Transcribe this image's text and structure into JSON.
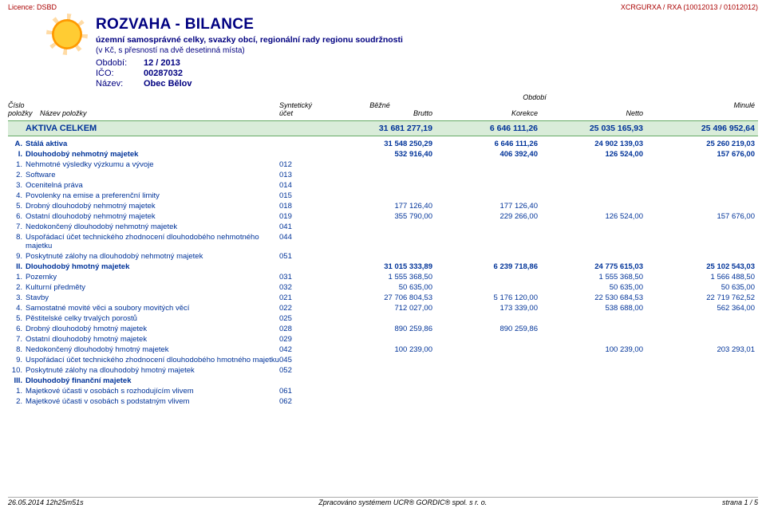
{
  "top": {
    "licence_label": "Licence:",
    "licence_value": "DSBD",
    "right": "XCRGURXA / RXA (10012013 / 01012012)"
  },
  "header": {
    "title": "ROZVAHA - BILANCE",
    "sub1": "územní samosprávné celky, svazky obcí, regionální rady regionu soudržnosti",
    "sub2": "(v Kč, s přesností na dvě desetinná místa)",
    "rows": [
      {
        "label": "Období:",
        "value": "12 / 2013"
      },
      {
        "label": "IČO:",
        "value": "00287032"
      },
      {
        "label": "Název:",
        "value": "Obec Bělov"
      }
    ]
  },
  "colhead": {
    "obdobi": "Období",
    "left1": "Číslo",
    "left2_a": "",
    "left2_b": "Název položky",
    "synth": "Syntetický",
    "ucet": "účet",
    "bezne": "Běžné",
    "brutto": "Brutto",
    "korekce": "Korekce",
    "netto": "Netto",
    "minule": "Minulé",
    "polozky": "položky"
  },
  "total": {
    "label": "AKTIVA CELKEM",
    "brutto": "31 681 277,19",
    "korekce": "6 646 111,26",
    "netto": "25 035 165,93",
    "minule": "25 496 952,64"
  },
  "sections": [
    {
      "idx": "A.",
      "name": "Stálá aktiva",
      "brutto": "31 548 250,29",
      "korekce": "6 646 111,26",
      "netto": "24 902 139,03",
      "minule": "25 260 219,03"
    }
  ],
  "groups": [
    {
      "idx": "I.",
      "name": "Dlouhodobý nehmotný majetek",
      "brutto": "532 916,40",
      "korekce": "406 392,40",
      "netto": "126 524,00",
      "minule": "157 676,00"
    },
    {
      "idx": "II.",
      "name": "Dlouhodobý hmotný majetek",
      "brutto": "31 015 333,89",
      "korekce": "6 239 718,86",
      "netto": "24 775 615,03",
      "minule": "25 102 543,03"
    },
    {
      "idx": "III.",
      "name": "Dlouhodobý finanční majetek",
      "brutto": "",
      "korekce": "",
      "netto": "",
      "minule": ""
    }
  ],
  "items_g1": [
    {
      "n": "1.",
      "name": "Nehmotné výsledky výzkumu a vývoje",
      "acc": "012"
    },
    {
      "n": "2.",
      "name": "Software",
      "acc": "013"
    },
    {
      "n": "3.",
      "name": "Ocenitelná práva",
      "acc": "014"
    },
    {
      "n": "4.",
      "name": "Povolenky na emise a preferenční limity",
      "acc": "015"
    },
    {
      "n": "5.",
      "name": "Drobný dlouhodobý nehmotný majetek",
      "acc": "018",
      "brutto": "177 126,40",
      "korekce": "177 126,40"
    },
    {
      "n": "6.",
      "name": "Ostatní dlouhodobý nehmotný majetek",
      "acc": "019",
      "brutto": "355 790,00",
      "korekce": "229 266,00",
      "netto": "126 524,00",
      "minule": "157 676,00"
    },
    {
      "n": "7.",
      "name": "Nedokončený dlouhodobý nehmotný majetek",
      "acc": "041"
    },
    {
      "n": "8.",
      "name": "Uspořádací účet technického zhodnocení dlouhodobého nehmotného majetku",
      "acc": "044"
    },
    {
      "n": "9.",
      "name": "Poskytnuté zálohy na dlouhodobý nehmotný majetek",
      "acc": "051"
    }
  ],
  "items_g2": [
    {
      "n": "1.",
      "name": "Pozemky",
      "acc": "031",
      "brutto": "1 555 368,50",
      "netto": "1 555 368,50",
      "minule": "1 566 488,50"
    },
    {
      "n": "2.",
      "name": "Kulturní předměty",
      "acc": "032",
      "brutto": "50 635,00",
      "netto": "50 635,00",
      "minule": "50 635,00"
    },
    {
      "n": "3.",
      "name": "Stavby",
      "acc": "021",
      "brutto": "27 706 804,53",
      "korekce": "5 176 120,00",
      "netto": "22 530 684,53",
      "minule": "22 719 762,52"
    },
    {
      "n": "4.",
      "name": "Samostatné movité věci a soubory movitých věcí",
      "acc": "022",
      "brutto": "712 027,00",
      "korekce": "173 339,00",
      "netto": "538 688,00",
      "minule": "562 364,00"
    },
    {
      "n": "5.",
      "name": "Pěstitelské celky trvalých porostů",
      "acc": "025"
    },
    {
      "n": "6.",
      "name": "Drobný dlouhodobý hmotný majetek",
      "acc": "028",
      "brutto": "890 259,86",
      "korekce": "890 259,86"
    },
    {
      "n": "7.",
      "name": "Ostatní dlouhodobý hmotný majetek",
      "acc": "029"
    },
    {
      "n": "8.",
      "name": "Nedokončený dlouhodobý hmotný majetek",
      "acc": "042",
      "brutto": "100 239,00",
      "netto": "100 239,00",
      "minule": "203 293,01"
    },
    {
      "n": "9.",
      "name": "Uspořádací účet technického zhodnocení dlouhodobého hmotného majetku",
      "acc": "045"
    },
    {
      "n": "10.",
      "name": "Poskytnuté zálohy na dlouhodobý hmotný majetek",
      "acc": "052"
    }
  ],
  "items_g3": [
    {
      "n": "1.",
      "name": "Majetkové účasti v osobách s rozhodujícím vlivem",
      "acc": "061"
    },
    {
      "n": "2.",
      "name": "Majetkové účasti v osobách s podstatným vlivem",
      "acc": "062"
    }
  ],
  "footer": {
    "left": "26.05.2014 12h25m51s",
    "mid": "Zpracováno systémem UCR® GORDIC® spol. s r. o.",
    "right": "strana 1 / 5"
  },
  "colors": {
    "brand_red": "#aa0000",
    "navy": "#000080",
    "band_bg": "#d9ecd9",
    "band_border": "#66aa66",
    "blue_text": "#003399"
  }
}
